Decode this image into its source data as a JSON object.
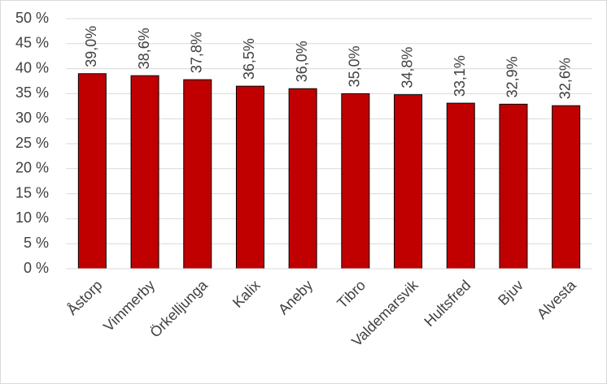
{
  "chart_data": {
    "type": "bar",
    "categories": [
      "Åstorp",
      "Vimmerby",
      "Örkelljunga",
      "Kalix",
      "Aneby",
      "Tibro",
      "Valdemarsvik",
      "Hultsfred",
      "Bjuv",
      "Alvesta"
    ],
    "values": [
      39.0,
      38.6,
      37.8,
      36.5,
      36.0,
      35.0,
      34.8,
      33.1,
      32.9,
      32.6
    ],
    "value_labels": [
      "39,0%",
      "38,6%",
      "37,8%",
      "36,5%",
      "36,0%",
      "35,0%",
      "34,8%",
      "33,1%",
      "32,9%",
      "32,6%"
    ],
    "color": "#c00000",
    "ylim": [
      0,
      50
    ],
    "yticks": [
      {
        "value": 0,
        "label": "0 %"
      },
      {
        "value": 5,
        "label": "5 %"
      },
      {
        "value": 10,
        "label": "10 %"
      },
      {
        "value": 15,
        "label": "15 %"
      },
      {
        "value": 20,
        "label": "20 %"
      },
      {
        "value": 25,
        "label": "25 %"
      },
      {
        "value": 30,
        "label": "30 %"
      },
      {
        "value": 35,
        "label": "35 %"
      },
      {
        "value": 40,
        "label": "40 %"
      },
      {
        "value": 45,
        "label": "45 %"
      },
      {
        "value": 50,
        "label": "50 %"
      }
    ],
    "grid": true
  }
}
